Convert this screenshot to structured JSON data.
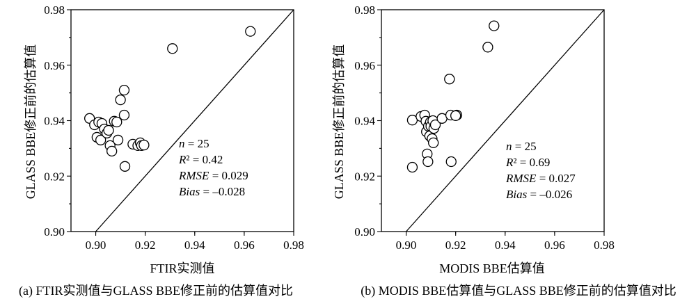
{
  "chart_data": [
    {
      "type": "scatter",
      "panel_label": "(a) FTIR实测值与GLASS BBE修正前的估算值对比",
      "xlabel": "FTIR实测值",
      "ylabel": "GLASS BBE修正前的估算值",
      "xlim": [
        0.89,
        0.98
      ],
      "ylim": [
        0.9,
        0.98
      ],
      "xticks": [
        "0.90",
        "0.92",
        "0.94",
        "0.96",
        "0.98"
      ],
      "yticks": [
        "0.90",
        "0.92",
        "0.94",
        "0.96",
        "0.98"
      ],
      "reference_line": "1:1",
      "stats": {
        "n": "n = 25",
        "r2": "R² = 0.42",
        "rmse": "RMSE = 0.029",
        "bias": "Bias = –0.028"
      },
      "points": [
        {
          "x": 0.8975,
          "y": 0.9408
        },
        {
          "x": 0.8995,
          "y": 0.9385
        },
        {
          "x": 0.9005,
          "y": 0.934
        },
        {
          "x": 0.9012,
          "y": 0.9395
        },
        {
          "x": 0.902,
          "y": 0.933
        },
        {
          "x": 0.9025,
          "y": 0.939
        },
        {
          "x": 0.9035,
          "y": 0.937
        },
        {
          "x": 0.9045,
          "y": 0.9355
        },
        {
          "x": 0.9052,
          "y": 0.9365
        },
        {
          "x": 0.9058,
          "y": 0.931
        },
        {
          "x": 0.9065,
          "y": 0.929
        },
        {
          "x": 0.9075,
          "y": 0.9398
        },
        {
          "x": 0.9085,
          "y": 0.9395
        },
        {
          "x": 0.909,
          "y": 0.933
        },
        {
          "x": 0.91,
          "y": 0.9475
        },
        {
          "x": 0.9115,
          "y": 0.951
        },
        {
          "x": 0.9115,
          "y": 0.942
        },
        {
          "x": 0.9118,
          "y": 0.9235
        },
        {
          "x": 0.915,
          "y": 0.9315
        },
        {
          "x": 0.917,
          "y": 0.931
        },
        {
          "x": 0.918,
          "y": 0.932
        },
        {
          "x": 0.9185,
          "y": 0.931
        },
        {
          "x": 0.9195,
          "y": 0.9312
        },
        {
          "x": 0.931,
          "y": 0.966
        },
        {
          "x": 0.9625,
          "y": 0.9722
        }
      ]
    },
    {
      "type": "scatter",
      "panel_label": "(b) MODIS BBE估算值与GLASS BBE修正前的估算值对比",
      "xlabel": "MODIS BBE估算值",
      "ylabel": "GLASS BBE修正前的估算值",
      "xlim": [
        0.89,
        0.98
      ],
      "ylim": [
        0.9,
        0.98
      ],
      "xticks": [
        "0.90",
        "0.92",
        "0.94",
        "0.96",
        "0.98"
      ],
      "yticks": [
        "0.90",
        "0.92",
        "0.94",
        "0.96",
        "0.98"
      ],
      "reference_line": "1:1",
      "stats": {
        "n": "n = 25",
        "r2": "R² = 0.69",
        "rmse": "RMSE = 0.027",
        "bias": "Bias = –0.026"
      },
      "points": [
        {
          "x": 0.9025,
          "y": 0.9402
        },
        {
          "x": 0.9025,
          "y": 0.9232
        },
        {
          "x": 0.906,
          "y": 0.9415
        },
        {
          "x": 0.9075,
          "y": 0.942
        },
        {
          "x": 0.908,
          "y": 0.9398
        },
        {
          "x": 0.9082,
          "y": 0.936
        },
        {
          "x": 0.9085,
          "y": 0.928
        },
        {
          "x": 0.9088,
          "y": 0.9252
        },
        {
          "x": 0.909,
          "y": 0.938
        },
        {
          "x": 0.9095,
          "y": 0.9345
        },
        {
          "x": 0.9098,
          "y": 0.9395
        },
        {
          "x": 0.91,
          "y": 0.938
        },
        {
          "x": 0.9105,
          "y": 0.9335
        },
        {
          "x": 0.9108,
          "y": 0.94
        },
        {
          "x": 0.911,
          "y": 0.932
        },
        {
          "x": 0.9112,
          "y": 0.9372
        },
        {
          "x": 0.9118,
          "y": 0.9385
        },
        {
          "x": 0.9145,
          "y": 0.9408
        },
        {
          "x": 0.9175,
          "y": 0.955
        },
        {
          "x": 0.918,
          "y": 0.942
        },
        {
          "x": 0.9182,
          "y": 0.9252
        },
        {
          "x": 0.9205,
          "y": 0.942
        },
        {
          "x": 0.92,
          "y": 0.9418
        },
        {
          "x": 0.933,
          "y": 0.9665
        },
        {
          "x": 0.9355,
          "y": 0.9742
        }
      ]
    }
  ]
}
